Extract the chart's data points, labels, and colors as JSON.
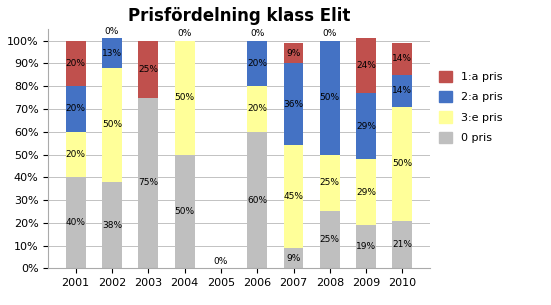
{
  "title": "Prisfördelning klass Elit",
  "years": [
    "2001",
    "2002",
    "2003",
    "2004",
    "2005",
    "2006",
    "2007",
    "2008",
    "2009",
    "2010"
  ],
  "series": {
    "0 pris": [
      40,
      38,
      75,
      50,
      0,
      60,
      9,
      25,
      19,
      21
    ],
    "3:e pris": [
      20,
      50,
      0,
      50,
      0,
      20,
      45,
      25,
      29,
      50
    ],
    "2:a pris": [
      20,
      13,
      0,
      0,
      0,
      20,
      36,
      50,
      29,
      14
    ],
    "1:a pris": [
      20,
      0,
      25,
      0,
      0,
      0,
      9,
      0,
      24,
      14
    ]
  },
  "colors": {
    "0 pris": "#bfbfbf",
    "3:e pris": "#ffff99",
    "2:a pris": "#4472c4",
    "1:a pris": "#c0504d"
  },
  "legend_order": [
    "1:a pris",
    "2:a pris",
    "3:e pris",
    "0 pris"
  ],
  "ylim": [
    0,
    105
  ],
  "yticks": [
    0,
    10,
    20,
    30,
    40,
    50,
    60,
    70,
    80,
    90,
    100
  ],
  "bar_width": 0.55,
  "figsize": [
    5.51,
    3.05
  ],
  "dpi": 100
}
